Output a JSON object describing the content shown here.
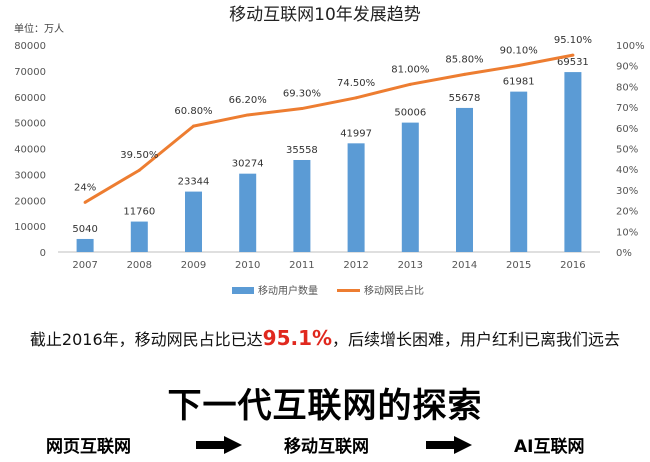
{
  "chart_data": {
    "type": "bar+line",
    "title": "移动互联网10年发展趋势",
    "unit_label": "单位：万人",
    "categories": [
      "2007",
      "2008",
      "2009",
      "2010",
      "2011",
      "2012",
      "2013",
      "2014",
      "2015",
      "2016"
    ],
    "series": [
      {
        "name": "移动用户数量",
        "type": "bar",
        "axis": "left",
        "values": [
          5040,
          11760,
          23344,
          30274,
          35558,
          41997,
          50006,
          55678,
          61981,
          69531
        ],
        "labels": [
          "5040",
          "11760",
          "23344",
          "30274",
          "35558",
          "41997",
          "50006",
          "55678",
          "61981",
          "69531"
        ]
      },
      {
        "name": "移动网民占比",
        "type": "line",
        "axis": "right",
        "values": [
          24,
          39.5,
          60.8,
          66.2,
          69.3,
          74.5,
          81.0,
          85.8,
          90.1,
          95.1
        ],
        "labels": [
          "24%",
          "39.50%",
          "60.80%",
          "66.20%",
          "69.30%",
          "74.50%",
          "81.00%",
          "85.80%",
          "90.10%",
          "95.10%"
        ]
      }
    ],
    "left_axis": {
      "min": 0,
      "max": 80000,
      "step": 10000,
      "ticks": [
        "0",
        "10000",
        "20000",
        "30000",
        "40000",
        "50000",
        "60000",
        "70000",
        "80000"
      ]
    },
    "right_axis": {
      "min": 0,
      "max": 100,
      "step": 10,
      "ticks": [
        "0%",
        "10%",
        "20%",
        "30%",
        "40%",
        "50%",
        "60%",
        "70%",
        "80%",
        "90%",
        "100%"
      ]
    },
    "grid": false,
    "legend_position": "bottom",
    "colors": {
      "bar": "#5b9bd5",
      "line": "#ed7d31"
    }
  },
  "caption": {
    "prefix": "截止2016年，移动网民占比已达",
    "highlight": "95.1%",
    "suffix": "，后续增长困难，用户红利已离我们远去"
  },
  "heading": "下一代互联网的探索",
  "flow": {
    "stages": [
      "网页互联网",
      "移动互联网",
      "AI互联网"
    ],
    "arrow_icon": "right-arrow-icon"
  },
  "colors": {
    "highlight": "#e0281e"
  }
}
